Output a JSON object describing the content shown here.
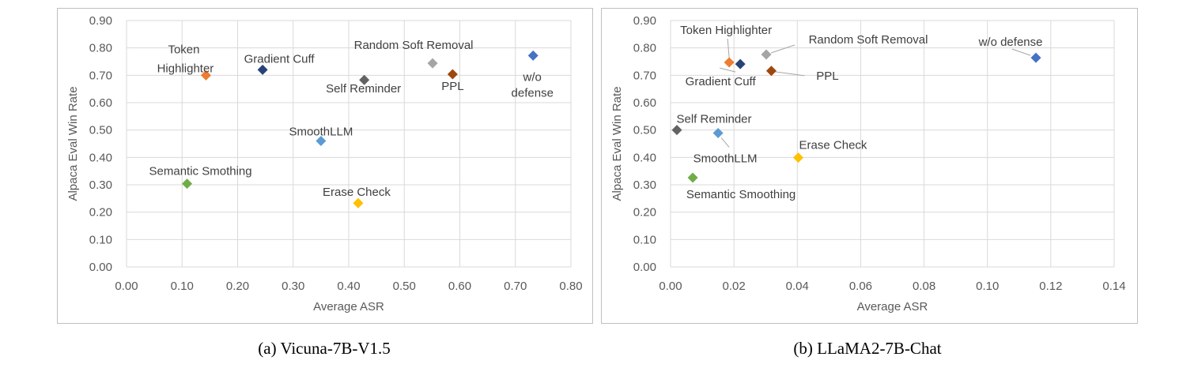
{
  "chart_data": [
    {
      "type": "scatter",
      "caption": "(a) Vicuna-7B-V1.5",
      "xlabel": "Average ASR",
      "ylabel": "Alpaca Eval Win Rate",
      "xlim": [
        0,
        0.8
      ],
      "ylim": [
        0,
        0.9
      ],
      "xticks": [
        "0.00",
        "0.10",
        "0.20",
        "0.30",
        "0.40",
        "0.50",
        "0.60",
        "0.70",
        "0.80"
      ],
      "yticks": [
        "0.00",
        "0.10",
        "0.20",
        "0.30",
        "0.40",
        "0.50",
        "0.60",
        "0.70",
        "0.80",
        "0.90"
      ],
      "grid": true,
      "marker": "diamond",
      "points": [
        {
          "label": "Token Highlighter",
          "lines": [
            "Token",
            "Highlighter"
          ],
          "x": 0.143,
          "y": 0.7,
          "color": "#ED7D31"
        },
        {
          "label": "Gradient Cuff",
          "lines": [
            "Gradient Cuff"
          ],
          "x": 0.245,
          "y": 0.72,
          "color": "#264478"
        },
        {
          "label": "Self Reminder",
          "lines": [
            "Self Reminder"
          ],
          "x": 0.428,
          "y": 0.683,
          "color": "#636363"
        },
        {
          "label": "Random Soft Removal",
          "lines": [
            "Random Soft Removal"
          ],
          "x": 0.551,
          "y": 0.744,
          "color": "#A5A5A5"
        },
        {
          "label": "PPL",
          "lines": [
            "PPL"
          ],
          "x": 0.587,
          "y": 0.704,
          "color": "#9E480E"
        },
        {
          "label": "w/o defense",
          "lines": [
            "w/o",
            "defense"
          ],
          "x": 0.732,
          "y": 0.772,
          "color": "#4472C4"
        },
        {
          "label": "SmoothLLM",
          "lines": [
            "SmoothLLM"
          ],
          "x": 0.35,
          "y": 0.46,
          "color": "#5B9BD5"
        },
        {
          "label": "Semantic Smothing",
          "lines": [
            "Semantic Smothing"
          ],
          "x": 0.109,
          "y": 0.304,
          "color": "#70AD47"
        },
        {
          "label": "Erase Check",
          "lines": [
            "Erase Check"
          ],
          "x": 0.417,
          "y": 0.233,
          "color": "#FFC000"
        }
      ]
    },
    {
      "type": "scatter",
      "caption": "(b) LLaMA2-7B-Chat",
      "xlabel": "Average ASR",
      "ylabel": "Alpaca Eval Win Rate",
      "xlim": [
        0,
        0.14
      ],
      "ylim": [
        0,
        0.9
      ],
      "xticks": [
        "0.00",
        "0.02",
        "0.04",
        "0.06",
        "0.08",
        "0.10",
        "0.12",
        "0.14"
      ],
      "yticks": [
        "0.00",
        "0.10",
        "0.20",
        "0.30",
        "0.40",
        "0.50",
        "0.60",
        "0.70",
        "0.80",
        "0.90"
      ],
      "grid": true,
      "marker": "diamond",
      "points": [
        {
          "label": "Token Highlighter",
          "lines": [
            "Token Highlighter"
          ],
          "x": 0.0185,
          "y": 0.747,
          "color": "#ED7D31"
        },
        {
          "label": "Gradient Cuff",
          "lines": [
            "Gradient Cuff"
          ],
          "x": 0.022,
          "y": 0.741,
          "color": "#264478"
        },
        {
          "label": "Random Soft Removal",
          "lines": [
            "Random Soft Removal"
          ],
          "x": 0.0302,
          "y": 0.776,
          "color": "#A5A5A5"
        },
        {
          "label": "PPL",
          "lines": [
            "PPL"
          ],
          "x": 0.0318,
          "y": 0.716,
          "color": "#9E480E"
        },
        {
          "label": "w/o defense",
          "lines": [
            "w/o defense"
          ],
          "x": 0.1153,
          "y": 0.764,
          "color": "#4472C4"
        },
        {
          "label": "Self Reminder",
          "lines": [
            "Self Reminder"
          ],
          "x": 0.002,
          "y": 0.5,
          "color": "#636363"
        },
        {
          "label": "SmoothLLM",
          "lines": [
            "SmoothLLM"
          ],
          "x": 0.015,
          "y": 0.489,
          "color": "#5B9BD5"
        },
        {
          "label": "Erase Check",
          "lines": [
            "Erase Check"
          ],
          "x": 0.0403,
          "y": 0.399,
          "color": "#FFC000"
        },
        {
          "label": "Semantic Smoothing",
          "lines": [
            "Semantic Smoothing"
          ],
          "x": 0.007,
          "y": 0.326,
          "color": "#70AD47"
        }
      ]
    }
  ]
}
